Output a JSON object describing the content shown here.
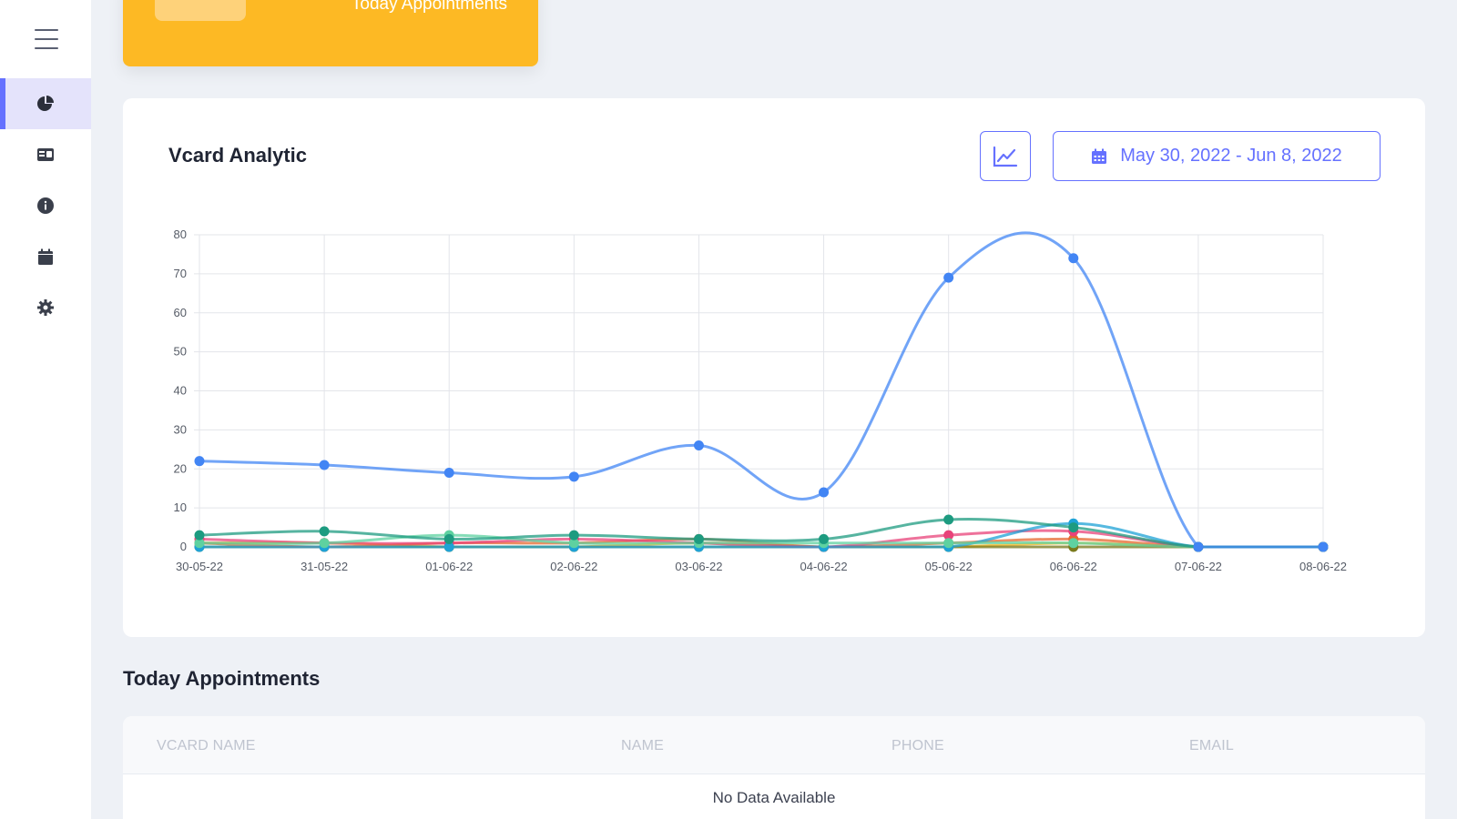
{
  "sidebar": {
    "menu_icon": "hamburger-menu-icon",
    "items": [
      {
        "icon": "pie-chart-icon",
        "active": true
      },
      {
        "icon": "id-card-icon",
        "active": false
      },
      {
        "icon": "info-circle-icon",
        "active": false
      },
      {
        "icon": "calendar-icon",
        "active": false
      },
      {
        "icon": "gear-icon",
        "active": false
      }
    ],
    "accent": "#6571ff"
  },
  "stat_card": {
    "label": "Today Appointments",
    "color": "#fdb924"
  },
  "analytic": {
    "title": "Vcard Analytic",
    "chart_toggle_icon": "line-chart-icon",
    "date_icon": "calendar-icon",
    "date_range": "May 30, 2022 - Jun 8, 2022"
  },
  "chart_data": {
    "type": "line",
    "title": "",
    "xlabel": "",
    "ylabel": "",
    "x": [
      "30-05-22",
      "31-05-22",
      "01-06-22",
      "02-06-22",
      "03-06-22",
      "04-06-22",
      "05-06-22",
      "06-06-22",
      "07-06-22",
      "08-06-22"
    ],
    "ylim": [
      0,
      80
    ],
    "yticks": [
      0,
      10,
      20,
      30,
      40,
      50,
      60,
      70,
      80
    ],
    "grid": true,
    "legend": "none",
    "series": [
      {
        "color": "#4285f4",
        "values": [
          22,
          21,
          19,
          18,
          26,
          14,
          69,
          74,
          0,
          0
        ]
      },
      {
        "color": "#1d9b80",
        "values": [
          3,
          4,
          2,
          3,
          2,
          2,
          7,
          5,
          0,
          0
        ]
      },
      {
        "color": "#5ed1a0",
        "values": [
          1,
          1,
          3,
          1,
          1,
          1,
          1,
          1,
          0,
          0
        ]
      },
      {
        "color": "#1ea2d6",
        "values": [
          0,
          0,
          0,
          0,
          0,
          0,
          0,
          6,
          0,
          0
        ]
      },
      {
        "color": "#e8437a",
        "values": [
          2,
          1,
          1,
          2,
          1,
          0,
          3,
          4,
          0,
          0
        ]
      },
      {
        "color": "#e6682f",
        "values": [
          1,
          0,
          1,
          1,
          2,
          0,
          1,
          2,
          0,
          0
        ]
      },
      {
        "color": "#7a7a1c",
        "values": [
          0,
          0,
          0,
          0,
          0,
          0,
          0,
          0,
          0,
          0
        ]
      },
      {
        "color": "#f4b81d",
        "values": [
          1,
          1,
          0,
          0,
          1,
          0,
          0,
          1,
          0,
          0
        ]
      }
    ]
  },
  "appointments": {
    "title": "Today Appointments",
    "columns": [
      "VCARD NAME",
      "NAME",
      "PHONE",
      "EMAIL"
    ],
    "empty_text": "No Data Available"
  }
}
